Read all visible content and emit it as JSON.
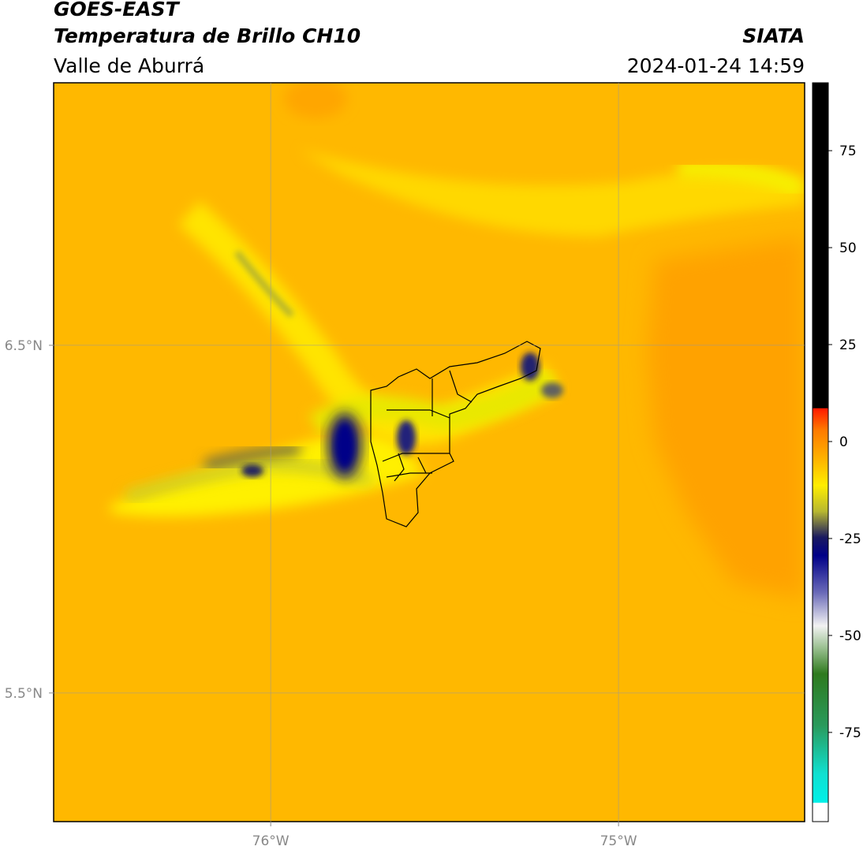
{
  "header": {
    "title": "GOES-EAST",
    "subtitle": "Temperatura de Brillo CH10",
    "region": "Valle de Aburrá",
    "source": "SIATA",
    "datetime": "2024-01-24 14:59"
  },
  "map": {
    "xlim": [
      -76.624,
      -74.465
    ],
    "ylim": [
      5.13,
      7.255
    ],
    "xticks": [
      {
        "value": -76,
        "label": "76°W"
      },
      {
        "value": -75,
        "label": "75°W"
      }
    ],
    "yticks": [
      {
        "value": 6.5,
        "label": "6.5°N"
      },
      {
        "value": 5.5,
        "label": "5.5°N"
      }
    ]
  },
  "colorbar": {
    "lim": [
      -98,
      92.5
    ],
    "ticks": [
      75,
      50,
      25,
      0,
      -25,
      -50,
      -75
    ]
  }
}
